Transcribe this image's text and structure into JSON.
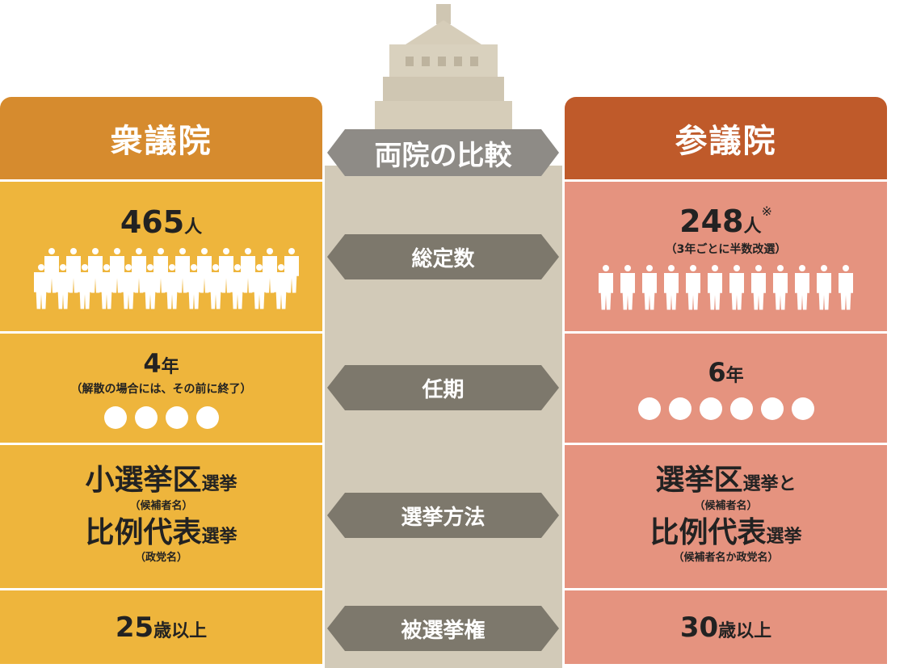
{
  "center": {
    "title": "両院の比較",
    "rows": [
      "総定数",
      "任期",
      "選挙方法",
      "被選挙権"
    ]
  },
  "colors": {
    "shugiin_header": "#d68b2e",
    "shugiin_body": "#eeb53c",
    "sangiin_header": "#bf5a2a",
    "sangiin_body": "#e5937f",
    "arrow": "#7d786c",
    "building": "#d2cab8"
  },
  "shugiin": {
    "name": "衆議院",
    "seats": "465",
    "seats_unit": "人",
    "people_icons": 24,
    "term": "4",
    "term_unit": "年",
    "term_note": "（解散の場合には、その前に終了）",
    "term_dots": 4,
    "method1": "小選挙区",
    "method1_suffix": "選挙",
    "method1_note": "（候補者名）",
    "method2": "比例代表",
    "method2_suffix": "選挙",
    "method2_note": "（政党名）",
    "age": "25",
    "age_unit": "歳以上"
  },
  "sangiin": {
    "name": "参議院",
    "seats": "248",
    "seats_unit": "人",
    "seats_mark": "※",
    "seats_note": "（3年ごとに半数改選）",
    "people_icons": 12,
    "term": "6",
    "term_unit": "年",
    "term_dots": 6,
    "method1": "選挙区",
    "method1_suffix": "選挙と",
    "method1_note": "（候補者名）",
    "method2": "比例代表",
    "method2_suffix": "選挙",
    "method2_note": "（候補者名か政党名）",
    "age": "30",
    "age_unit": "歳以上"
  }
}
